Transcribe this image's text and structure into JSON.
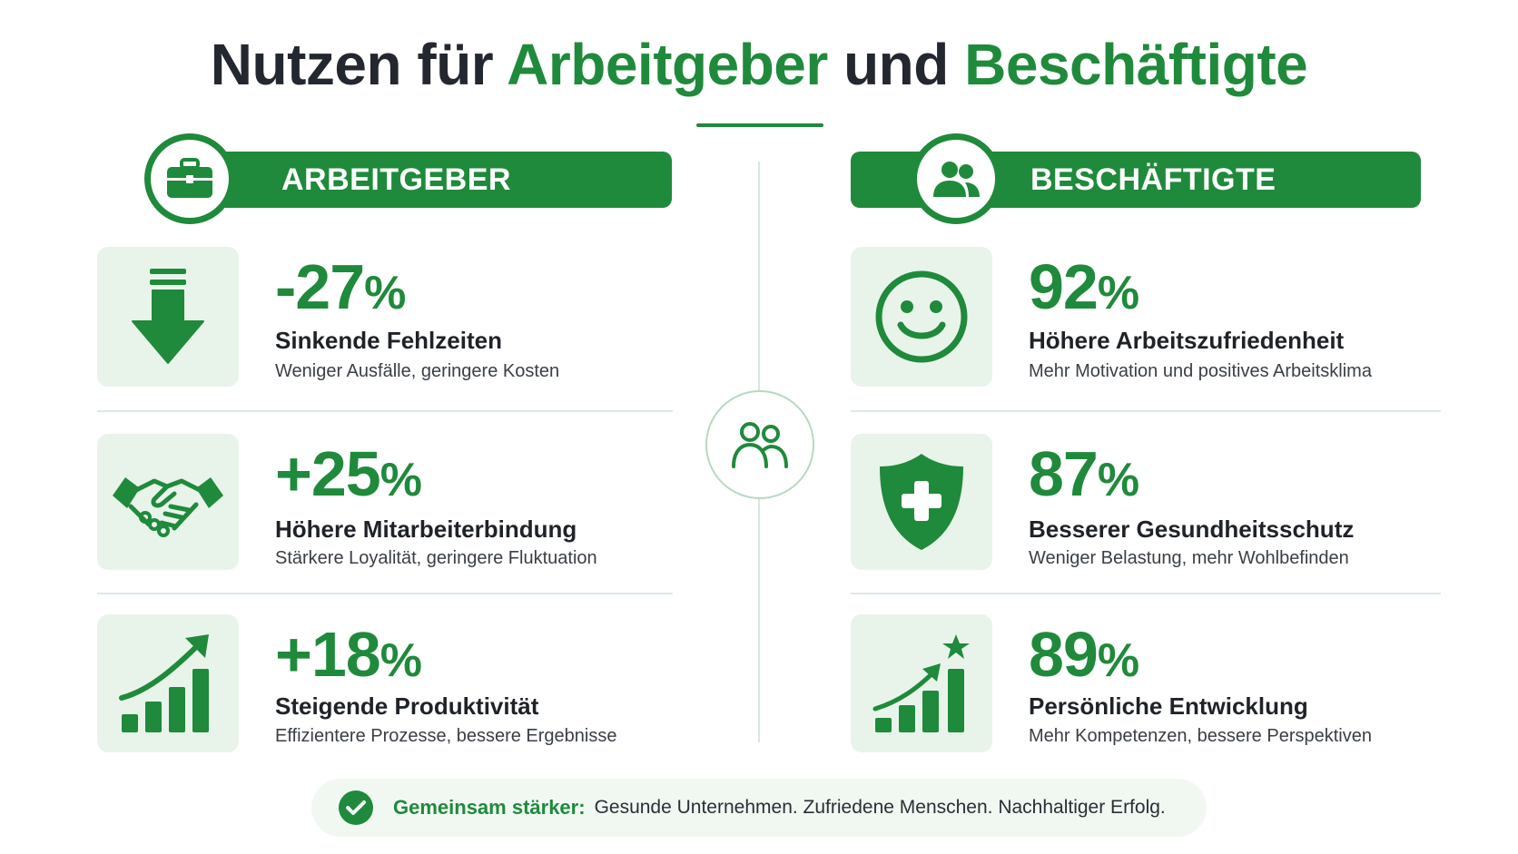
{
  "title": {
    "part1": "Nutzen für ",
    "part2": "Arbeitgeber",
    "part3": " und ",
    "part4": "Beschäftigte"
  },
  "colors": {
    "accent": "#1f8a3b",
    "tile": "#e8f4ea",
    "text": "#23272f"
  },
  "left": {
    "header": "ARBEITGEBER",
    "header_icon": "briefcase-icon",
    "cards": [
      {
        "stat": "-27",
        "pct": "%",
        "title": "Sinkende Fehlzeiten",
        "sub": "Weniger Ausfälle, geringere Kosten",
        "icon": "arrow-down-icon"
      },
      {
        "stat": "+25",
        "pct": "%",
        "title": "Höhere Mitarbeiterbindung",
        "sub": "Stärkere Loyalität, geringere Fluktuation",
        "icon": "handshake-icon"
      },
      {
        "stat": "+18",
        "pct": "%",
        "title": "Steigende Produktivität",
        "sub": "Effizientere Prozesse, bessere Ergebnisse",
        "icon": "growth-chart-icon"
      }
    ]
  },
  "right": {
    "header": "BESCHÄFTIGTE",
    "header_icon": "people-icon",
    "cards": [
      {
        "stat": "92",
        "pct": "%",
        "title": "Höhere Arbeitszufriedenheit",
        "sub": "Mehr Motivation und positives Arbeitsklima",
        "icon": "smiley-icon"
      },
      {
        "stat": "87",
        "pct": "%",
        "title": "Besserer Gesundheitsschutz",
        "sub": "Weniger Belastung, mehr Wohlbefinden",
        "icon": "shield-plus-icon"
      },
      {
        "stat": "89",
        "pct": "%",
        "title": "Persönliche Entwicklung",
        "sub": "Mehr Kompetenzen, bessere Perspektiven",
        "icon": "growth-star-icon"
      }
    ]
  },
  "center_icon": "people-outline-icon",
  "footer": {
    "bold": "Gemeinsam stärker:",
    "text": "Gesunde Unternehmen. Zufriedene Menschen. Nachhaltiger Erfolg.",
    "icon": "check-circle-icon"
  }
}
